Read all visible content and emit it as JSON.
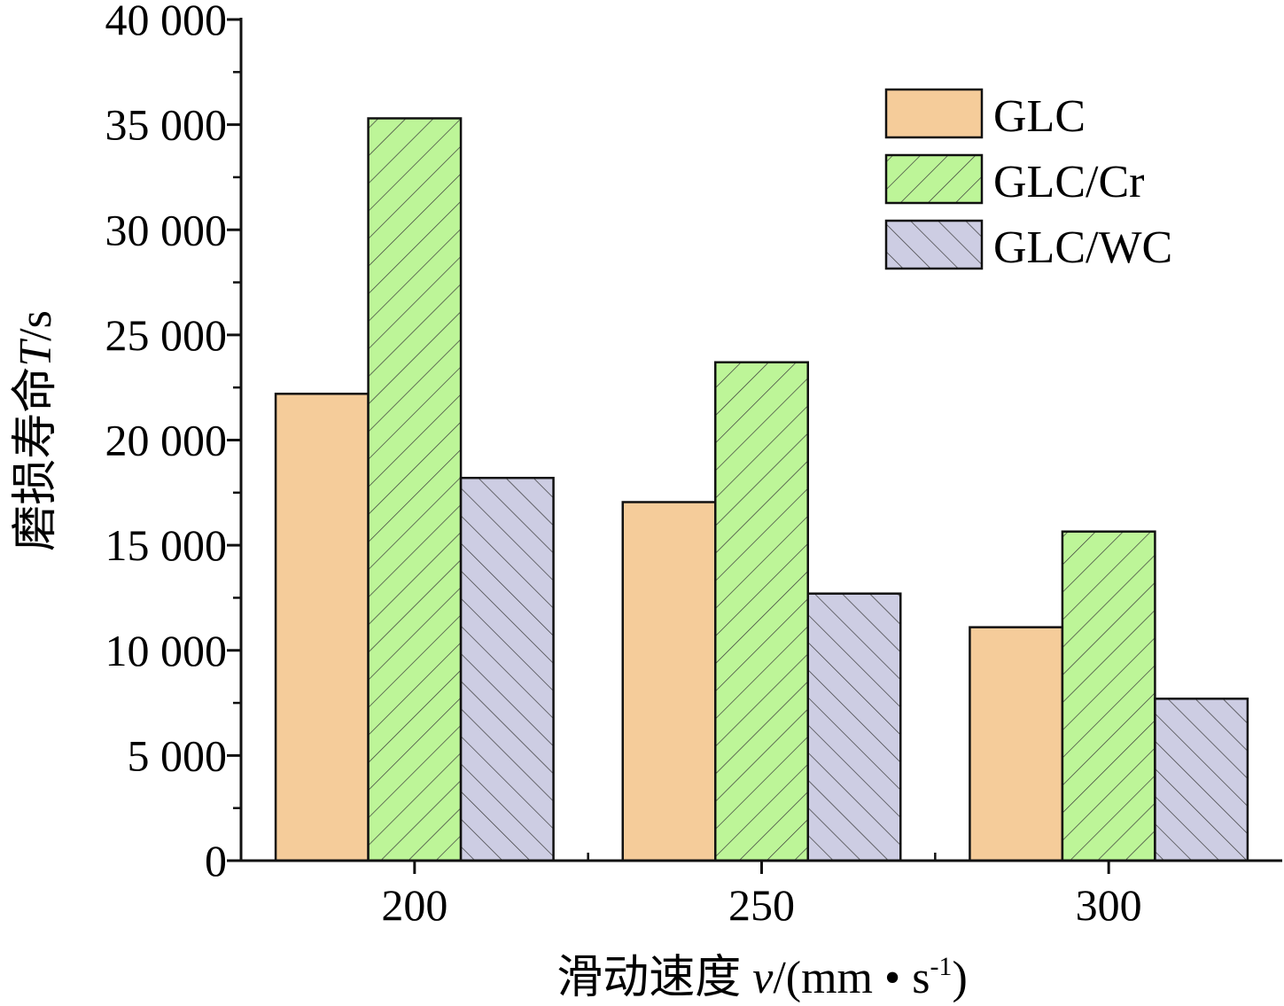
{
  "chart_data": {
    "type": "bar",
    "categories": [
      "200",
      "250",
      "300"
    ],
    "series": [
      {
        "name": "GLC",
        "values": [
          22200,
          17050,
          11100
        ],
        "color": "#F5CC9A",
        "pattern": "none"
      },
      {
        "name": "GLC/Cr",
        "values": [
          35300,
          23700,
          15650
        ],
        "color": "#BDF598",
        "pattern": "hatch-forward"
      },
      {
        "name": "GLC/WC",
        "values": [
          18200,
          12700,
          7700
        ],
        "color": "#CDCDE3",
        "pattern": "hatch-back"
      }
    ],
    "xlabel": {
      "prefix": "滑动速度 ",
      "var": "v",
      "unit_open": "/(mm • s",
      "exp": "-1",
      "unit_close": ")"
    },
    "ylabel": {
      "prefix": "磨损寿命",
      "var": "T",
      "unit": "/s"
    },
    "ylim": [
      0,
      40000
    ],
    "yticks": [
      0,
      5000,
      10000,
      15000,
      20000,
      25000,
      30000,
      35000,
      40000
    ],
    "ytick_labels": [
      "0",
      "5 000",
      "10 000",
      "15 000",
      "20 000",
      "25 000",
      "30 000",
      "35 000",
      "40 000"
    ],
    "legend": "top-right",
    "grid": false
  }
}
